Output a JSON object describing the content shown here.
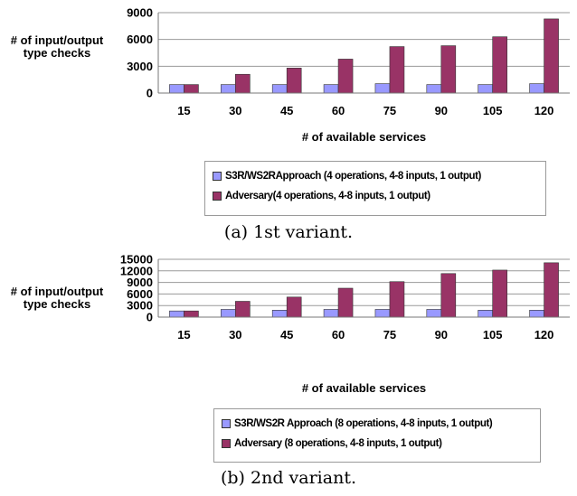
{
  "chart_data": [
    {
      "type": "bar",
      "title": "",
      "xlabel": "# of available services",
      "ylabel": "# of input/output type checks",
      "categories": [
        "15",
        "30",
        "45",
        "60",
        "75",
        "90",
        "105",
        "120"
      ],
      "ylim": [
        0,
        9000
      ],
      "yticks": [
        "0",
        "3000",
        "6000",
        "9000"
      ],
      "grid": true,
      "legend_position": "bottom",
      "series": [
        {
          "name": "S3R/WS2RApproach (4 operations, 4-8 inputs, 1 output)",
          "color": "#9999ff",
          "values": [
            950,
            950,
            950,
            950,
            1050,
            950,
            950,
            1050
          ]
        },
        {
          "name": "Adversary(4 operations, 4-8 inputs, 1 output)",
          "color": "#993366",
          "values": [
            950,
            2100,
            2800,
            3800,
            5200,
            5300,
            6300,
            8300
          ]
        }
      ],
      "caption": "(a) 1st variant."
    },
    {
      "type": "bar",
      "title": "",
      "xlabel": "# of available services",
      "ylabel": "# of input/output type checks",
      "categories": [
        "15",
        "30",
        "45",
        "60",
        "75",
        "90",
        "105",
        "120"
      ],
      "ylim": [
        0,
        15000
      ],
      "yticks": [
        "0",
        "3000",
        "6000",
        "9000",
        "12000",
        "15000"
      ],
      "grid": true,
      "legend_position": "bottom",
      "series": [
        {
          "name": "S3R/WS2R Approach (8 operations, 4-8 inputs, 1 output)",
          "color": "#9999ff",
          "values": [
            1600,
            2000,
            1800,
            2000,
            2000,
            2000,
            1800,
            1800
          ]
        },
        {
          "name": "Adversary (8 operations, 4-8 inputs, 1 output)",
          "color": "#993366",
          "values": [
            1600,
            4100,
            5200,
            7500,
            9200,
            11300,
            12200,
            14100
          ]
        }
      ],
      "caption": "(b) 2nd variant."
    }
  ]
}
